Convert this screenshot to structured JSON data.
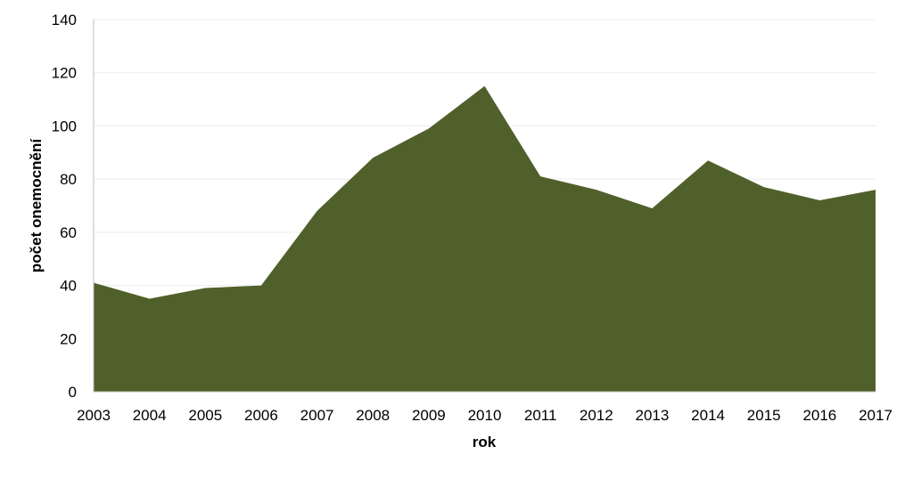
{
  "chart_data": {
    "type": "area",
    "x": [
      "2003",
      "2004",
      "2005",
      "2006",
      "2007",
      "2008",
      "2009",
      "2010",
      "2011",
      "2012",
      "2013",
      "2014",
      "2015",
      "2016",
      "2017"
    ],
    "series": [
      {
        "values": [
          41,
          35,
          39,
          40,
          68,
          88,
          99,
          115,
          81,
          76,
          69,
          87,
          77,
          72,
          76
        ]
      }
    ],
    "xlabel": "rok",
    "ylabel": "počet onemocnění",
    "ylim": [
      0,
      140
    ],
    "yticks": [
      0,
      20,
      40,
      60,
      80,
      100,
      120,
      140
    ],
    "grid": true,
    "legend": "none",
    "colors": {
      "area": "#50602a",
      "grid": "#ececec",
      "axis": "#bfbfbf"
    }
  }
}
